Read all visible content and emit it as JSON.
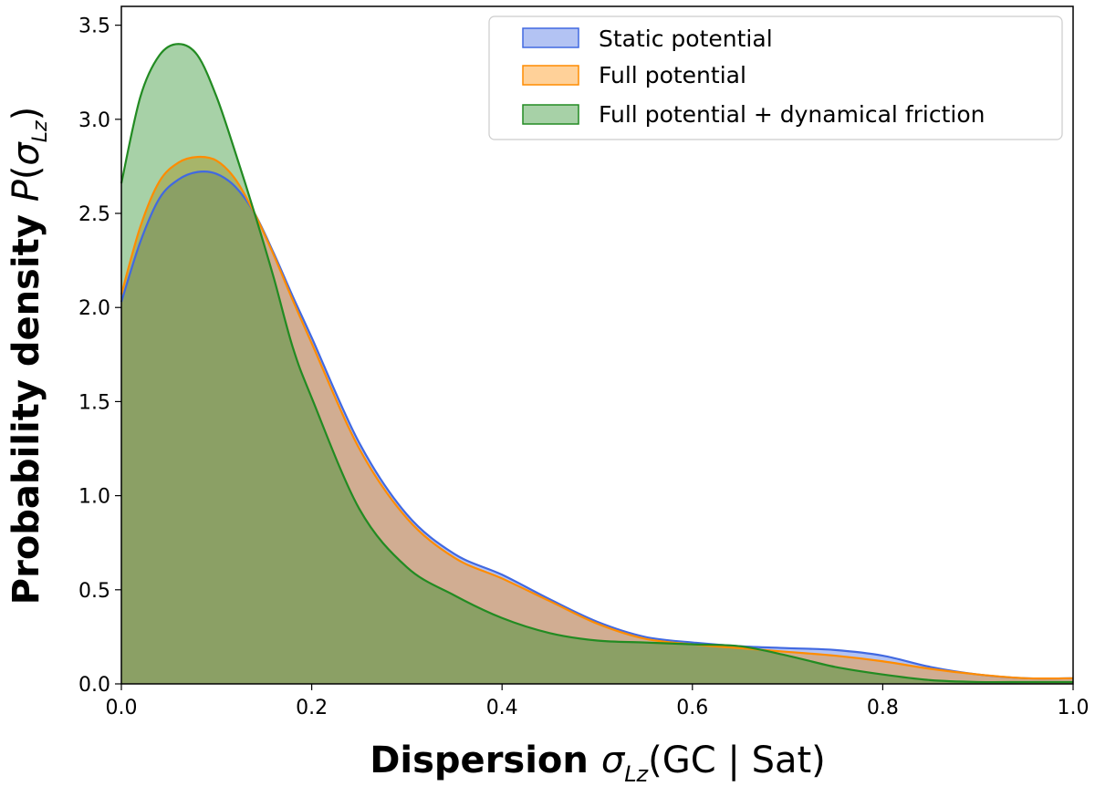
{
  "chart_data": {
    "type": "area",
    "xlim": [
      0.0,
      1.0
    ],
    "ylim": [
      0.0,
      3.6
    ],
    "x_ticks": [
      "0.0",
      "0.2",
      "0.4",
      "0.6",
      "0.8",
      "1.0"
    ],
    "y_ticks": [
      "0.0",
      "0.5",
      "1.0",
      "1.5",
      "2.0",
      "2.5",
      "3.0",
      "3.5"
    ],
    "xlabel": {
      "bold": "Dispersion ",
      "symbol": "σ",
      "sub": "Lz",
      "rest": "(GC | Sat)"
    },
    "ylabel": {
      "bold": "Probability density ",
      "symbol": "P",
      "open": "(",
      "sigma": "σ",
      "sub": "Lz",
      "close": ")"
    },
    "legend_position": "top-right",
    "series": [
      {
        "name": "Static potential",
        "line_color": "#4169e1",
        "fill_color": "#4169e1",
        "x": [
          0.0,
          0.02,
          0.04,
          0.06,
          0.08,
          0.1,
          0.12,
          0.14,
          0.16,
          0.18,
          0.2,
          0.25,
          0.3,
          0.35,
          0.4,
          0.45,
          0.5,
          0.55,
          0.6,
          0.65,
          0.7,
          0.75,
          0.8,
          0.85,
          0.9,
          0.95,
          1.0
        ],
        "values": [
          2.03,
          2.35,
          2.58,
          2.68,
          2.72,
          2.71,
          2.64,
          2.5,
          2.29,
          2.06,
          1.84,
          1.28,
          0.9,
          0.69,
          0.58,
          0.45,
          0.33,
          0.25,
          0.22,
          0.2,
          0.19,
          0.18,
          0.15,
          0.09,
          0.05,
          0.03,
          0.03
        ]
      },
      {
        "name": "Full potential",
        "line_color": "#ff8c00",
        "fill_color": "#ff8c00",
        "x": [
          0.0,
          0.02,
          0.04,
          0.06,
          0.08,
          0.1,
          0.12,
          0.14,
          0.16,
          0.18,
          0.2,
          0.25,
          0.3,
          0.35,
          0.4,
          0.45,
          0.5,
          0.55,
          0.6,
          0.65,
          0.7,
          0.75,
          0.8,
          0.85,
          0.9,
          0.95,
          1.0
        ],
        "values": [
          2.07,
          2.43,
          2.67,
          2.77,
          2.8,
          2.78,
          2.68,
          2.5,
          2.28,
          2.04,
          1.81,
          1.25,
          0.88,
          0.67,
          0.56,
          0.44,
          0.32,
          0.24,
          0.21,
          0.19,
          0.17,
          0.15,
          0.12,
          0.08,
          0.05,
          0.03,
          0.03
        ]
      },
      {
        "name": "Full potential + dynamical friction",
        "line_color": "#228b22",
        "fill_color": "#228b22",
        "x": [
          0.0,
          0.02,
          0.04,
          0.06,
          0.08,
          0.1,
          0.12,
          0.14,
          0.16,
          0.18,
          0.2,
          0.25,
          0.3,
          0.35,
          0.4,
          0.45,
          0.5,
          0.55,
          0.6,
          0.65,
          0.7,
          0.75,
          0.8,
          0.85,
          0.9,
          0.95,
          1.0
        ],
        "values": [
          2.66,
          3.12,
          3.34,
          3.4,
          3.34,
          3.12,
          2.82,
          2.5,
          2.16,
          1.79,
          1.52,
          0.93,
          0.62,
          0.47,
          0.35,
          0.27,
          0.23,
          0.22,
          0.21,
          0.2,
          0.15,
          0.09,
          0.05,
          0.02,
          0.01,
          0.01,
          0.01
        ]
      }
    ]
  }
}
